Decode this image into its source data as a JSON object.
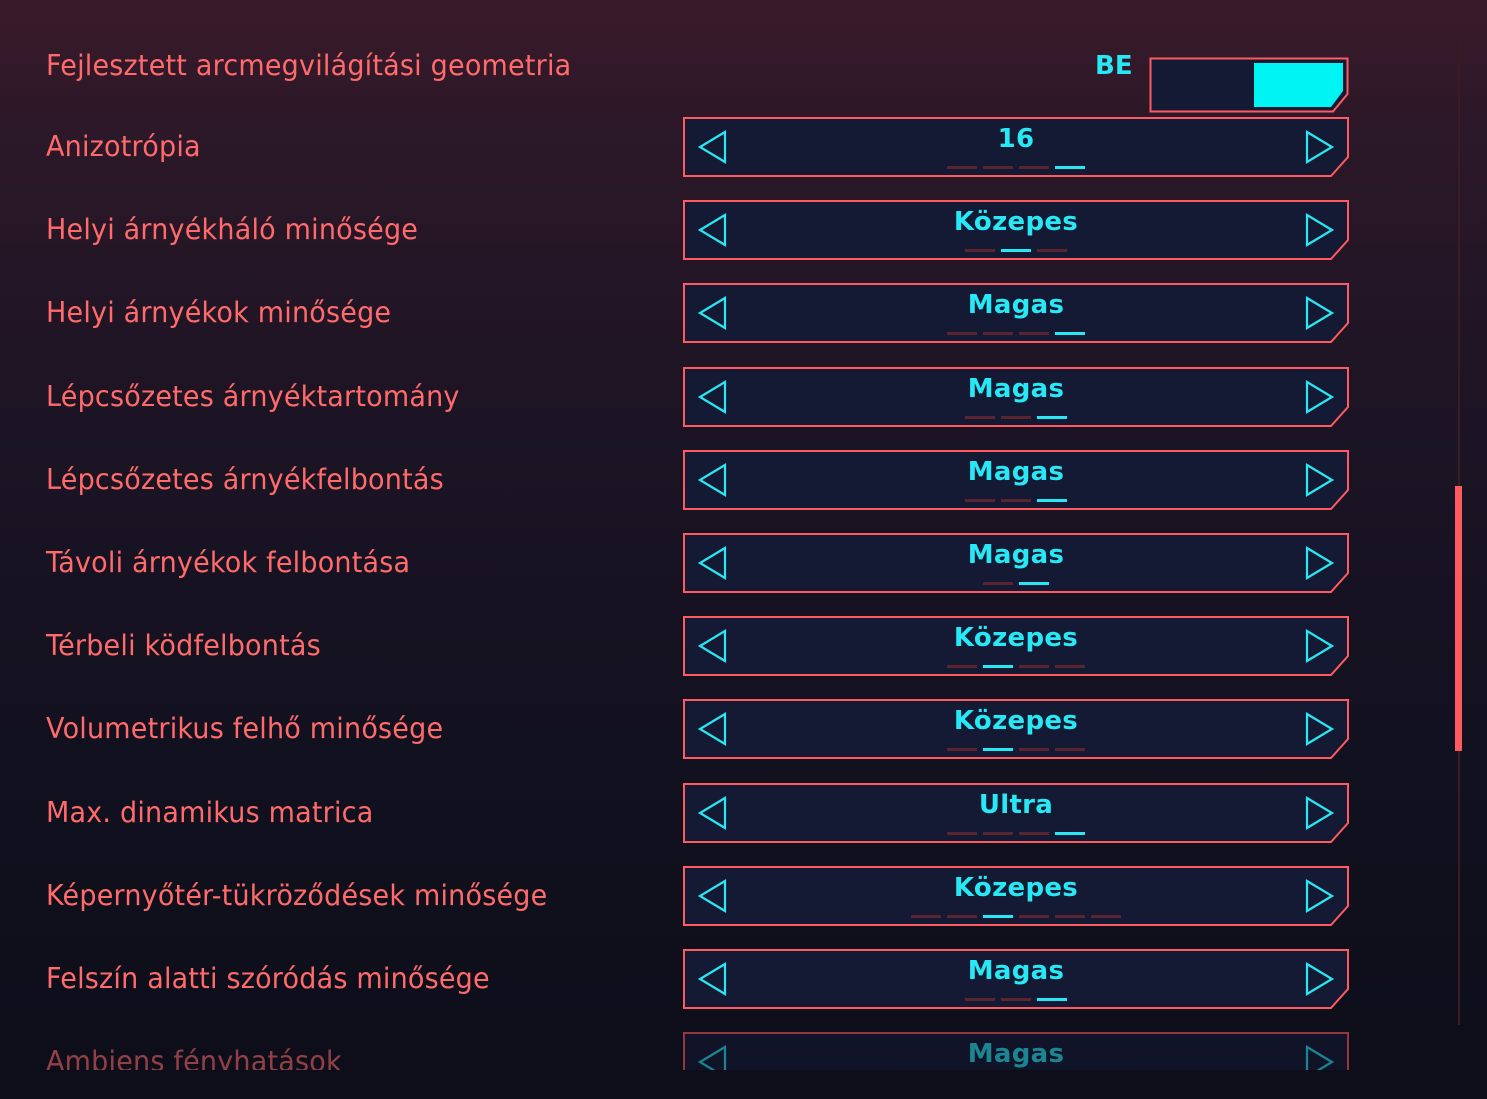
{
  "colors": {
    "label": "#ff6a6a",
    "value": "#27e8f4",
    "frame": "#ff5a5f",
    "panel": "#141a33",
    "scroll_thumb": "#ff5a5f"
  },
  "toggle_setting": {
    "label": "Fejlesztett arcmegvilágítási geometria",
    "state_text": "BE",
    "on": true
  },
  "settings": [
    {
      "label": "Anizotrópia",
      "value": "16",
      "option_count": 4,
      "selected_index": 3
    },
    {
      "label": "Helyi árnyékháló minősége",
      "value": "Közepes",
      "option_count": 3,
      "selected_index": 1
    },
    {
      "label": "Helyi árnyékok minősége",
      "value": "Magas",
      "option_count": 4,
      "selected_index": 3
    },
    {
      "label": "Lépcsőzetes árnyéktartomány",
      "value": "Magas",
      "option_count": 3,
      "selected_index": 2
    },
    {
      "label": "Lépcsőzetes árnyékfelbontás",
      "value": "Magas",
      "option_count": 3,
      "selected_index": 2
    },
    {
      "label": "Távoli árnyékok felbontása",
      "value": "Magas",
      "option_count": 2,
      "selected_index": 1
    },
    {
      "label": "Térbeli ködfelbontás",
      "value": "Közepes",
      "option_count": 4,
      "selected_index": 1
    },
    {
      "label": "Volumetrikus felhő minősége",
      "value": "Közepes",
      "option_count": 4,
      "selected_index": 1
    },
    {
      "label": "Max. dinamikus matrica",
      "value": "Ultra",
      "option_count": 4,
      "selected_index": 3
    },
    {
      "label": "Képernyőtér-tükröződések minősége",
      "value": "Közepes",
      "option_count": 6,
      "selected_index": 2
    },
    {
      "label": "Felszín alatti szóródás minősége",
      "value": "Magas",
      "option_count": 3,
      "selected_index": 2
    },
    {
      "label": "Ambiens fényhatások",
      "value": "Magas",
      "option_count": 0,
      "selected_index": 0,
      "partially_visible": true
    }
  ],
  "scrollbar": {
    "position_fraction": 0.45,
    "visible_fraction": 0.27
  },
  "icons": {
    "previous": "arrow-left-icon",
    "next": "arrow-right-icon"
  }
}
